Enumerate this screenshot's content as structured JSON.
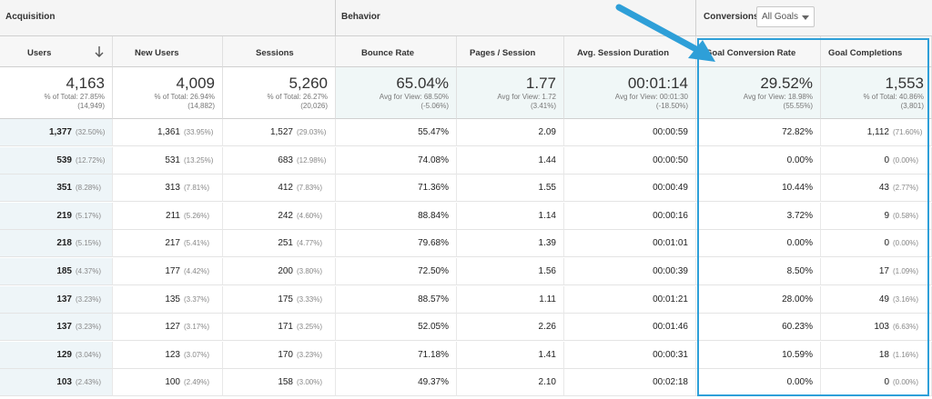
{
  "groups": {
    "acquisition": "Acquisition",
    "behavior": "Behavior",
    "conversions": "Conversions",
    "goals_selected": "All Goals"
  },
  "columns": [
    {
      "label": "Users"
    },
    {
      "label": "New Users"
    },
    {
      "label": "Sessions"
    },
    {
      "label": "Bounce Rate"
    },
    {
      "label": "Pages / Session"
    },
    {
      "label": "Avg. Session Duration"
    },
    {
      "label": "Goal Conversion Rate"
    },
    {
      "label": "Goal Completions"
    }
  ],
  "totals": [
    {
      "big": "4,163",
      "sub1": "% of Total: 27.85%",
      "sub2": "(14,949)"
    },
    {
      "big": "4,009",
      "sub1": "% of Total: 26.94%",
      "sub2": "(14,882)"
    },
    {
      "big": "5,260",
      "sub1": "% of Total: 26.27%",
      "sub2": "(20,026)"
    },
    {
      "big": "65.04%",
      "sub1": "Avg for View: 68.50%",
      "sub2": "(-5.06%)"
    },
    {
      "big": "1.77",
      "sub1": "Avg for View: 1.72",
      "sub2": "(3.41%)"
    },
    {
      "big": "00:01:14",
      "sub1": "Avg for View: 00:01:30",
      "sub2": "(-18.50%)"
    },
    {
      "big": "29.52%",
      "sub1": "Avg for View: 18.98%",
      "sub2": "(55.55%)"
    },
    {
      "big": "1,553",
      "sub1": "% of Total: 40.86%",
      "sub2": "(3,801)"
    }
  ],
  "rows": [
    [
      {
        "v": "1,377",
        "p": "(32.50%)"
      },
      {
        "v": "1,361",
        "p": "(33.95%)"
      },
      {
        "v": "1,527",
        "p": "(29.03%)"
      },
      {
        "v": "55.47%"
      },
      {
        "v": "2.09"
      },
      {
        "v": "00:00:59"
      },
      {
        "v": "72.82%"
      },
      {
        "v": "1,112",
        "p": "(71.60%)"
      }
    ],
    [
      {
        "v": "539",
        "p": "(12.72%)"
      },
      {
        "v": "531",
        "p": "(13.25%)"
      },
      {
        "v": "683",
        "p": "(12.98%)"
      },
      {
        "v": "74.08%"
      },
      {
        "v": "1.44"
      },
      {
        "v": "00:00:50"
      },
      {
        "v": "0.00%"
      },
      {
        "v": "0",
        "p": "(0.00%)"
      }
    ],
    [
      {
        "v": "351",
        "p": "(8.28%)"
      },
      {
        "v": "313",
        "p": "(7.81%)"
      },
      {
        "v": "412",
        "p": "(7.83%)"
      },
      {
        "v": "71.36%"
      },
      {
        "v": "1.55"
      },
      {
        "v": "00:00:49"
      },
      {
        "v": "10.44%"
      },
      {
        "v": "43",
        "p": "(2.77%)"
      }
    ],
    [
      {
        "v": "219",
        "p": "(5.17%)"
      },
      {
        "v": "211",
        "p": "(5.26%)"
      },
      {
        "v": "242",
        "p": "(4.60%)"
      },
      {
        "v": "88.84%"
      },
      {
        "v": "1.14"
      },
      {
        "v": "00:00:16"
      },
      {
        "v": "3.72%"
      },
      {
        "v": "9",
        "p": "(0.58%)"
      }
    ],
    [
      {
        "v": "218",
        "p": "(5.15%)"
      },
      {
        "v": "217",
        "p": "(5.41%)"
      },
      {
        "v": "251",
        "p": "(4.77%)"
      },
      {
        "v": "79.68%"
      },
      {
        "v": "1.39"
      },
      {
        "v": "00:01:01"
      },
      {
        "v": "0.00%"
      },
      {
        "v": "0",
        "p": "(0.00%)"
      }
    ],
    [
      {
        "v": "185",
        "p": "(4.37%)"
      },
      {
        "v": "177",
        "p": "(4.42%)"
      },
      {
        "v": "200",
        "p": "(3.80%)"
      },
      {
        "v": "72.50%"
      },
      {
        "v": "1.56"
      },
      {
        "v": "00:00:39"
      },
      {
        "v": "8.50%"
      },
      {
        "v": "17",
        "p": "(1.09%)"
      }
    ],
    [
      {
        "v": "137",
        "p": "(3.23%)"
      },
      {
        "v": "135",
        "p": "(3.37%)"
      },
      {
        "v": "175",
        "p": "(3.33%)"
      },
      {
        "v": "88.57%"
      },
      {
        "v": "1.11"
      },
      {
        "v": "00:01:21"
      },
      {
        "v": "28.00%"
      },
      {
        "v": "49",
        "p": "(3.16%)"
      }
    ],
    [
      {
        "v": "137",
        "p": "(3.23%)"
      },
      {
        "v": "127",
        "p": "(3.17%)"
      },
      {
        "v": "171",
        "p": "(3.25%)"
      },
      {
        "v": "52.05%"
      },
      {
        "v": "2.26"
      },
      {
        "v": "00:01:46"
      },
      {
        "v": "60.23%"
      },
      {
        "v": "103",
        "p": "(6.63%)"
      }
    ],
    [
      {
        "v": "129",
        "p": "(3.04%)"
      },
      {
        "v": "123",
        "p": "(3.07%)"
      },
      {
        "v": "170",
        "p": "(3.23%)"
      },
      {
        "v": "71.18%"
      },
      {
        "v": "1.41"
      },
      {
        "v": "00:00:31"
      },
      {
        "v": "10.59%"
      },
      {
        "v": "18",
        "p": "(1.16%)"
      }
    ],
    [
      {
        "v": "103",
        "p": "(2.43%)"
      },
      {
        "v": "100",
        "p": "(2.49%)"
      },
      {
        "v": "158",
        "p": "(3.00%)"
      },
      {
        "v": "49.37%"
      },
      {
        "v": "2.10"
      },
      {
        "v": "00:02:18"
      },
      {
        "v": "0.00%"
      },
      {
        "v": "0",
        "p": "(0.00%)"
      }
    ]
  ],
  "colors": {
    "highlight": "#2e9fd8",
    "accent_bg": "#eef5f8"
  }
}
